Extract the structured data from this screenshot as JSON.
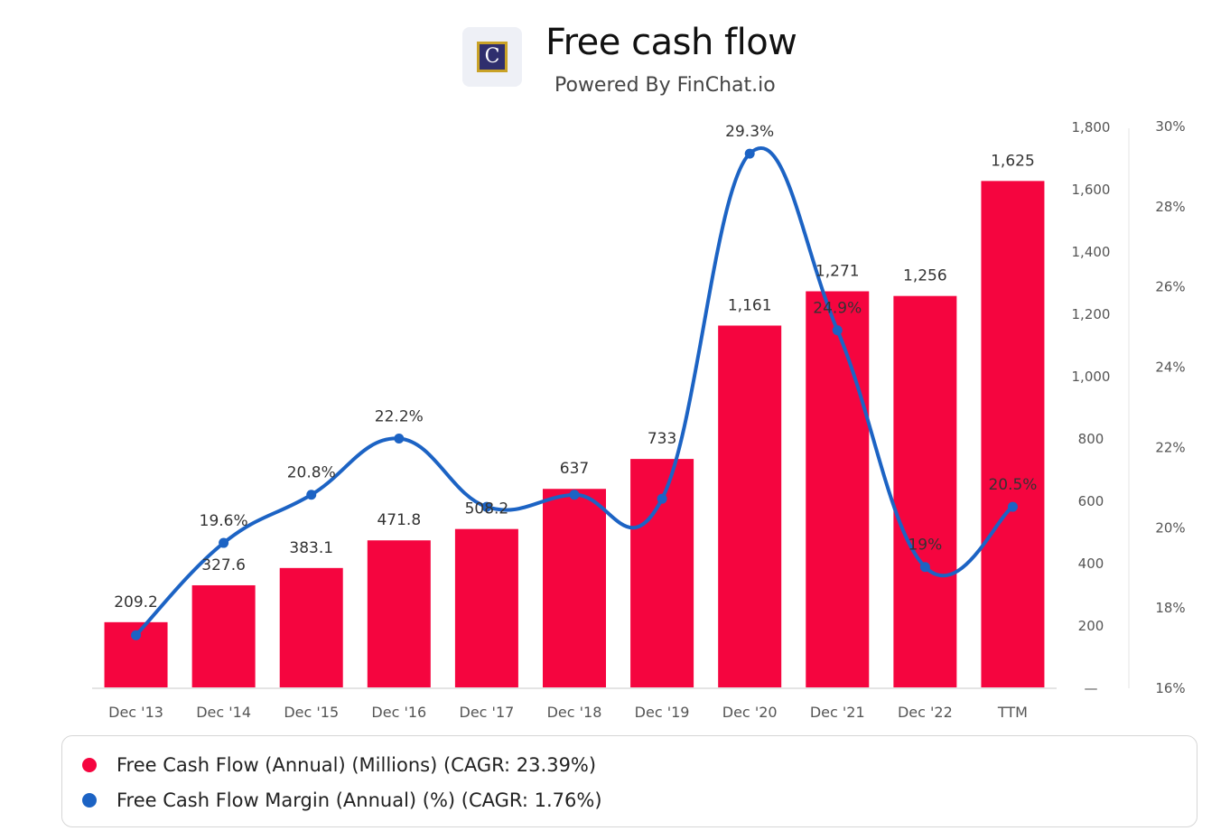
{
  "header": {
    "logo_letter": "C",
    "title": "Free cash flow",
    "subtitle": "Powered By FinChat.io"
  },
  "colors": {
    "bar": "#f5053f",
    "line": "#1c63c4",
    "axis_text": "#555555",
    "label_text": "#333333"
  },
  "chart_data": {
    "type": "bar",
    "categories": [
      "Dec '13",
      "Dec '14",
      "Dec '15",
      "Dec '16",
      "Dec '17",
      "Dec '18",
      "Dec '19",
      "Dec '20",
      "Dec '21",
      "Dec '22",
      "TTM"
    ],
    "series": [
      {
        "name": "Free Cash Flow (Annual) (Millions) (CAGR: 23.39%)",
        "type": "bar",
        "axis": "left",
        "values": [
          209.2,
          327.6,
          383.1,
          471.8,
          508.2,
          637,
          733,
          1161,
          1271,
          1256,
          1625
        ],
        "labels": [
          "209.2",
          "327.6",
          "383.1",
          "471.8",
          "508.2",
          "637",
          "733",
          "1,161",
          "1,271",
          "1,256",
          "1,625"
        ]
      },
      {
        "name": "Free Cash Flow Margin (Annual) (%) (CAGR: 1.76%)",
        "type": "line",
        "axis": "right",
        "values": [
          17.3,
          19.6,
          20.8,
          22.2,
          20.5,
          20.8,
          20.7,
          29.3,
          24.9,
          19.0,
          20.5
        ],
        "labels": [
          "",
          "19.6%",
          "20.8%",
          "22.2%",
          "",
          "",
          "",
          "29.3%",
          "24.9%",
          "19%",
          "20.5%"
        ]
      }
    ],
    "y_left": {
      "ticks": [
        0,
        200,
        400,
        600,
        800,
        1000,
        1200,
        1400,
        1600,
        1800
      ],
      "tick_labels": [
        "—",
        "200",
        "400",
        "600",
        "800",
        "1,000",
        "1,200",
        "1,400",
        "1,600",
        "1,800"
      ],
      "range": [
        0,
        1800
      ]
    },
    "y_right": {
      "ticks": [
        16,
        18,
        20,
        22,
        24,
        26,
        28,
        30
      ],
      "tick_labels": [
        "16%",
        "18%",
        "20%",
        "22%",
        "24%",
        "26%",
        "28%",
        "30%"
      ],
      "range": [
        16,
        30
      ]
    },
    "grid": false,
    "legend": "bottom"
  },
  "legend": {
    "items": [
      {
        "label": "Free Cash Flow (Annual) (Millions) (CAGR: 23.39%)",
        "color": "#f5053f"
      },
      {
        "label": "Free Cash Flow Margin (Annual) (%) (CAGR: 1.76%)",
        "color": "#1c63c4"
      }
    ]
  }
}
